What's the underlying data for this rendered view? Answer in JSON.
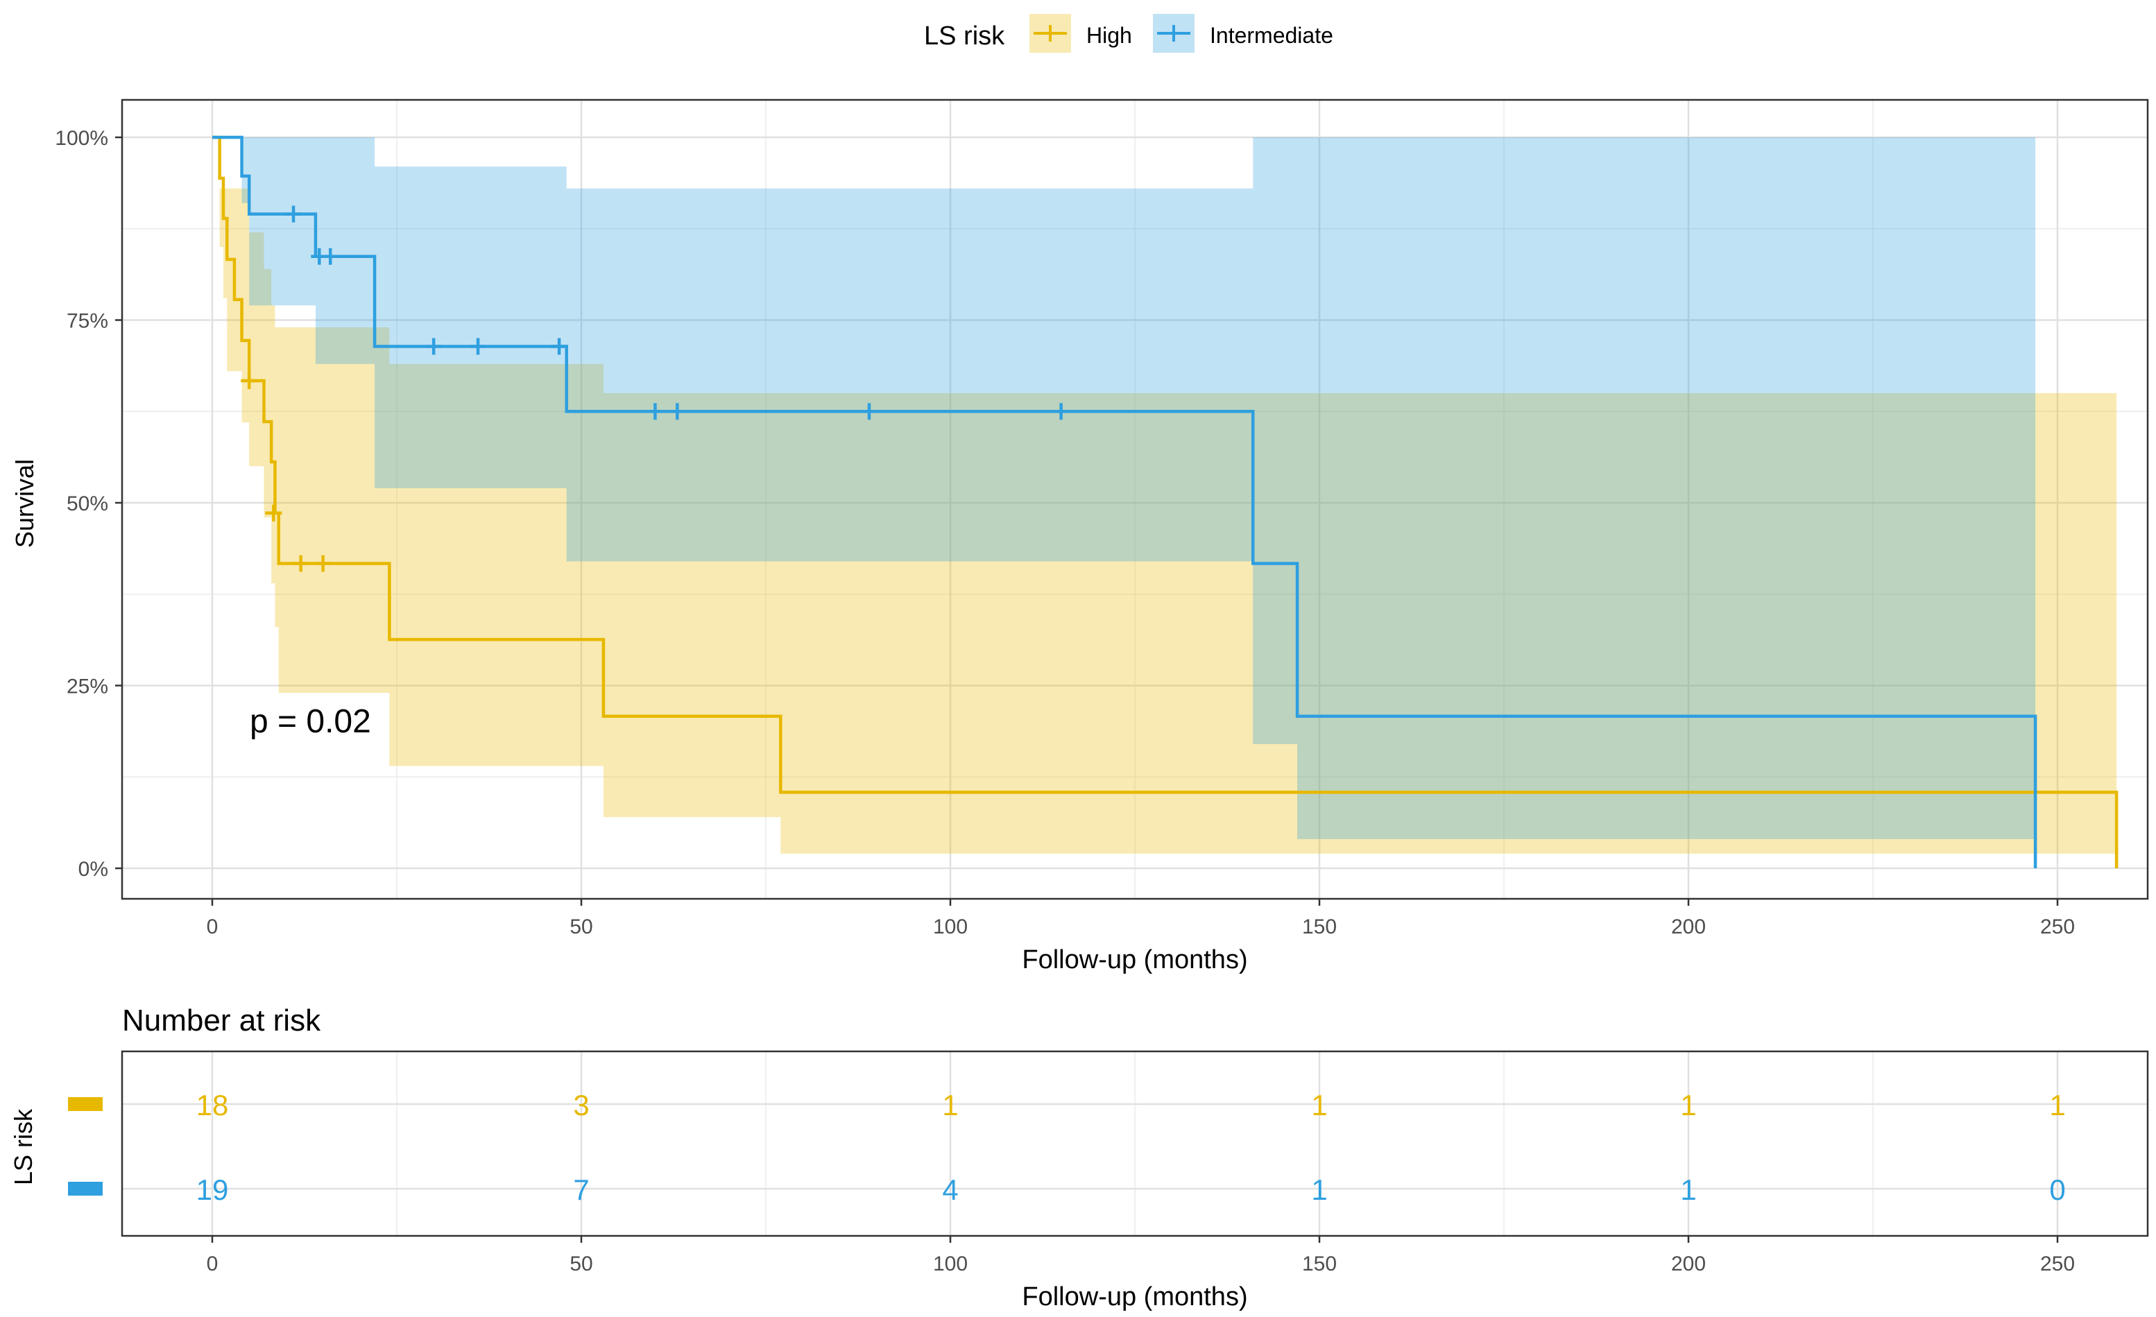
{
  "legend": {
    "title": "LS risk",
    "position": "top",
    "items": [
      {
        "label": "High",
        "color": "#E7B800"
      },
      {
        "label": "Intermediate",
        "color": "#2E9FDF"
      }
    ]
  },
  "chart_data": [
    {
      "type": "line",
      "subtype": "kaplan-meier",
      "title": "",
      "xlabel": "Follow-up (months)",
      "ylabel": "Survival",
      "xlim": [
        -12,
        262
      ],
      "ylim": [
        -0.05,
        1.05
      ],
      "xticks": [
        0,
        50,
        100,
        150,
        200,
        250
      ],
      "yticks": [
        0,
        0.25,
        0.5,
        0.75,
        1.0
      ],
      "ytick_labels": [
        "0%",
        "25%",
        "50%",
        "75%",
        "100%"
      ],
      "grid": true,
      "annotation": "p = 0.02",
      "series": [
        {
          "name": "High",
          "color": "#E7B800",
          "steps": [
            [
              0,
              1.0
            ],
            [
              1,
              0.944
            ],
            [
              1.5,
              0.889
            ],
            [
              2,
              0.833
            ],
            [
              3,
              0.778
            ],
            [
              4,
              0.722
            ],
            [
              5,
              0.667
            ],
            [
              7,
              0.611
            ],
            [
              8,
              0.556
            ],
            [
              8.5,
              0.486
            ],
            [
              9,
              0.417
            ],
            [
              24,
              0.313
            ],
            [
              53,
              0.208
            ],
            [
              77,
              0.104
            ],
            [
              258,
              0
            ]
          ],
          "ci": [
            [
              0,
              1.0,
              1.0
            ],
            [
              1,
              0.93,
              0.85
            ],
            [
              1.5,
              0.93,
              0.78
            ],
            [
              2,
              0.93,
              0.68
            ],
            [
              4,
              0.93,
              0.61
            ],
            [
              5,
              0.87,
              0.55
            ],
            [
              7,
              0.82,
              0.48
            ],
            [
              8,
              0.77,
              0.39
            ],
            [
              8.5,
              0.74,
              0.33
            ],
            [
              9,
              0.74,
              0.24
            ],
            [
              24,
              0.69,
              0.14
            ],
            [
              53,
              0.65,
              0.07
            ],
            [
              77,
              0.65,
              0.02
            ],
            [
              258,
              0.62,
              0.02
            ]
          ],
          "censors": [
            [
              5,
              0.667
            ],
            [
              8.3,
              0.486
            ],
            [
              12,
              0.417
            ],
            [
              15,
              0.417
            ]
          ]
        },
        {
          "name": "Intermediate",
          "color": "#2E9FDF",
          "steps": [
            [
              0,
              1.0
            ],
            [
              4,
              0.947
            ],
            [
              5,
              0.895
            ],
            [
              14,
              0.837
            ],
            [
              22,
              0.714
            ],
            [
              48,
              0.625
            ],
            [
              141,
              0.417
            ],
            [
              147,
              0.208
            ],
            [
              247,
              0
            ]
          ],
          "ci": [
            [
              0,
              1.0,
              1.0
            ],
            [
              4,
              1.0,
              0.91
            ],
            [
              5,
              1.0,
              0.77
            ],
            [
              14,
              1.0,
              0.69
            ],
            [
              22,
              0.96,
              0.52
            ],
            [
              48,
              0.93,
              0.42
            ],
            [
              141,
              1.0,
              0.17
            ],
            [
              147,
              1.0,
              0.04
            ],
            [
              247,
              1.0,
              0.04
            ]
          ],
          "censors": [
            [
              11,
              0.895
            ],
            [
              14.5,
              0.837
            ],
            [
              16,
              0.837
            ],
            [
              30,
              0.714
            ],
            [
              36,
              0.714
            ],
            [
              47,
              0.714
            ],
            [
              60,
              0.625
            ],
            [
              63,
              0.625
            ],
            [
              89,
              0.625
            ],
            [
              115,
              0.625
            ]
          ]
        }
      ]
    },
    {
      "type": "table",
      "title": "Number at risk",
      "xlabel": "Follow-up (months)",
      "ylabel": "LS risk",
      "xlim": [
        -12,
        262
      ],
      "xticks": [
        0,
        50,
        100,
        150,
        200,
        250
      ],
      "grid": true,
      "rows": [
        {
          "name": "High",
          "color": "#E7B800",
          "values": [
            18,
            3,
            1,
            1,
            1,
            1
          ]
        },
        {
          "name": "Intermediate",
          "color": "#2E9FDF",
          "values": [
            19,
            7,
            4,
            1,
            1,
            0
          ]
        }
      ]
    }
  ]
}
